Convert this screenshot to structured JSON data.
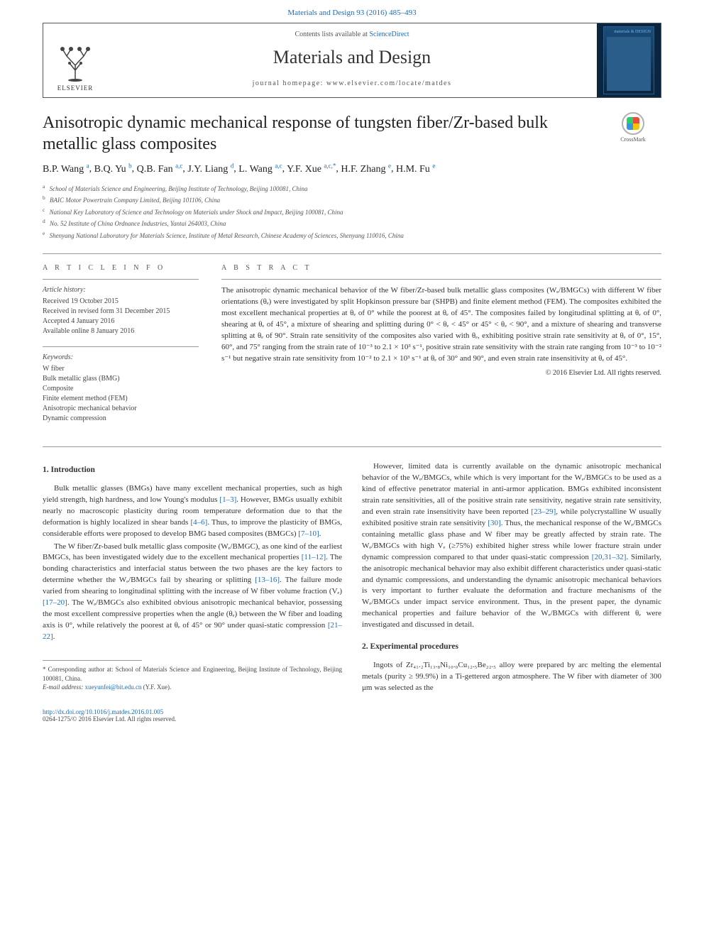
{
  "header": {
    "citation": "Materials and Design 93 (2016) 485–493",
    "contents_prefix": "Contents lists available at ",
    "contents_link": "ScienceDirect",
    "journal_name": "Materials and Design",
    "homepage_prefix": "journal homepage: ",
    "homepage_url": "www.elsevier.com/locate/matdes",
    "publisher_label": "ELSEVIER",
    "cover_badge_text": "materials & DESIGN"
  },
  "crossmark": {
    "label": "CrossMark"
  },
  "title": "Anisotropic dynamic mechanical response of tungsten fiber/Zr-based bulk metallic glass composites",
  "authors_html": "B.P. Wang ᵃ, B.Q. Yu ᵇ, Q.B. Fan ᵃ·ᶜ, J.Y. Liang ᵈ, L. Wang ᵃ·ᶜ, Y.F. Xue ᵃ·ᶜ·*, H.F. Zhang ᵉ, H.M. Fu ᵉ",
  "authors": [
    {
      "name": "B.P. Wang",
      "aff": "a"
    },
    {
      "name": "B.Q. Yu",
      "aff": "b"
    },
    {
      "name": "Q.B. Fan",
      "aff": "a,c"
    },
    {
      "name": "J.Y. Liang",
      "aff": "d"
    },
    {
      "name": "L. Wang",
      "aff": "a,c"
    },
    {
      "name": "Y.F. Xue",
      "aff": "a,c,*"
    },
    {
      "name": "H.F. Zhang",
      "aff": "e"
    },
    {
      "name": "H.M. Fu",
      "aff": "e"
    }
  ],
  "affiliations": [
    {
      "key": "a",
      "text": "School of Materials Science and Engineering, Beijing Institute of Technology, Beijing 100081, China"
    },
    {
      "key": "b",
      "text": "BAIC Motor Powertrain Company Limited, Beijing 101106, China"
    },
    {
      "key": "c",
      "text": "National Key Laboratory of Science and Technology on Materials under Shock and Impact, Beijing 100081, China"
    },
    {
      "key": "d",
      "text": "No. 52 Institute of China Ordnance Industries, Yantai 264003, China"
    },
    {
      "key": "e",
      "text": "Shenyang National Laboratory for Materials Science, Institute of Metal Research, Chinese Academy of Sciences, Shenyang 110016, China"
    }
  ],
  "article_info": {
    "heading": "A R T I C L E   I N F O",
    "history_label": "Article history:",
    "history": [
      "Received 19 October 2015",
      "Received in revised form 31 December 2015",
      "Accepted 4 January 2016",
      "Available online 8 January 2016"
    ],
    "keywords_label": "Keywords:",
    "keywords": [
      "W fiber",
      "Bulk metallic glass (BMG)",
      "Composite",
      "Finite element method (FEM)",
      "Anisotropic mechanical behavior",
      "Dynamic compression"
    ]
  },
  "abstract": {
    "heading": "A B S T R A C T",
    "text": "The anisotropic dynamic mechanical behavior of the W fiber/Zr-based bulk metallic glass composites (Wₑ/BMGCs) with different W fiber orientations (θₑ) were investigated by split Hopkinson pressure bar (SHPB) and finite element method (FEM). The composites exhibited the most excellent mechanical properties at θₑ of 0° while the poorest at θₑ of 45°. The composites failed by longitudinal splitting at θₑ of 0°, shearing at θₑ of 45°, a mixture of shearing and splitting during 0° < θₑ < 45° or 45° < θₑ < 90°, and a mixture of shearing and transverse splitting at θₑ of 90°. Strain rate sensitivity of the composites also varied with θₑ, exhibiting positive strain rate sensitivity at θₑ of 0°, 15°, 60°, and 75° ranging from the strain rate of 10⁻³ to 2.1 × 10³ s⁻¹, positive strain rate sensitivity with the strain rate ranging from 10⁻³ to 10⁻² s⁻¹ but negative strain rate sensitivity from 10⁻² to 2.1 × 10³ s⁻¹ at θₑ of 30° and 90°, and even strain rate insensitivity at θₑ of 45°.",
    "copyright": "© 2016 Elsevier Ltd. All rights reserved."
  },
  "sections": {
    "s1": {
      "heading": "1. Introduction",
      "p1": "Bulk metallic glasses (BMGs) have many excellent mechanical properties, such as high yield strength, high hardness, and low Young's modulus [1–3]. However, BMGs usually exhibit nearly no macroscopic plasticity during room temperature deformation due to that the deformation is highly localized in shear bands [4–6]. Thus, to improve the plasticity of BMGs, considerable efforts were proposed to develop BMG based composites (BMGCs) [7–10].",
      "p2": "The W fiber/Zr-based bulk metallic glass composite (Wₑ/BMGC), as one kind of the earliest BMGCs, has been investigated widely due to the excellent mechanical properties [11–12]. The bonding characteristics and interfacial status between the two phases are the key factors to determine whether the Wₑ/BMGCs fail by shearing or splitting [13–16]. The failure mode varied from shearing to longitudinal splitting with the increase of W fiber volume fraction (Vₑ) [17–20]. The Wₑ/BMGCs also exhibited obvious anisotropic mechanical behavior, possessing the most excellent compressive properties when the angle (θₑ) between the W fiber and loading axis is 0°, while relatively the poorest at θₑ of 45° or 90° under quasi-static compression [21–22].",
      "p3": "However, limited data is currently available on the dynamic anisotropic mechanical behavior of the Wₑ/BMGCs, while which is very important for the Wₑ/BMGCs to be used as a kind of effective penetrator material in anti-armor application. BMGs exhibited inconsistent strain rate sensitivities, all of the positive strain rate sensitivity, negative strain rate sensitivity, and even strain rate insensitivity have been reported [23–29], while polycrystalline W usually exhibited positive strain rate sensitivity [30]. Thus, the mechanical response of the Wₑ/BMGCs containing metallic glass phase and W fiber may be greatly affected by strain rate. The Wₑ/BMGCs with high Vₑ (≥75%) exhibited higher stress while lower fracture strain under dynamic compression compared to that under quasi-static compression [20,31–32]. Similarly, the anisotropic mechanical behavior may also exhibit different characteristics under quasi-static and dynamic compressions, and understanding the dynamic anisotropic mechanical behaviors is very important to further evaluate the deformation and fracture mechanisms of the Wₑ/BMGCs under impact service environment. Thus, in the present paper, the dynamic mechanical properties and failure behavior of the Wₑ/BMGCs with different θₑ were investigated and discussed in detail."
    },
    "s2": {
      "heading": "2. Experimental procedures",
      "p1": "Ingots of Zr₄₁.₂Ti₁₃.₈Ni₁₀.₀Cu₁₂.₅Be₂₂.₅ alloy were prepared by arc melting the elemental metals (purity ≥ 99.9%) in a Ti-gettered argon atmosphere. The W fiber with diameter of 300 μm was selected as the"
    }
  },
  "footnotes": {
    "corresponding": "* Corresponding author at: School of Materials Science and Engineering, Beijing Institute of Technology, Beijing 100081, China.",
    "email_label": "E-mail address: ",
    "email": "xueyunfei@bit.edu.cn",
    "email_suffix": " (Y.F. Xue)."
  },
  "footer": {
    "doi": "http://dx.doi.org/10.1016/j.matdes.2016.01.005",
    "issn_line": "0264-1275/© 2016 Elsevier Ltd. All rights reserved."
  },
  "colors": {
    "link": "#1a6bb8",
    "text": "#333333",
    "rule": "#999999",
    "cover_bg": "#0a2540"
  }
}
